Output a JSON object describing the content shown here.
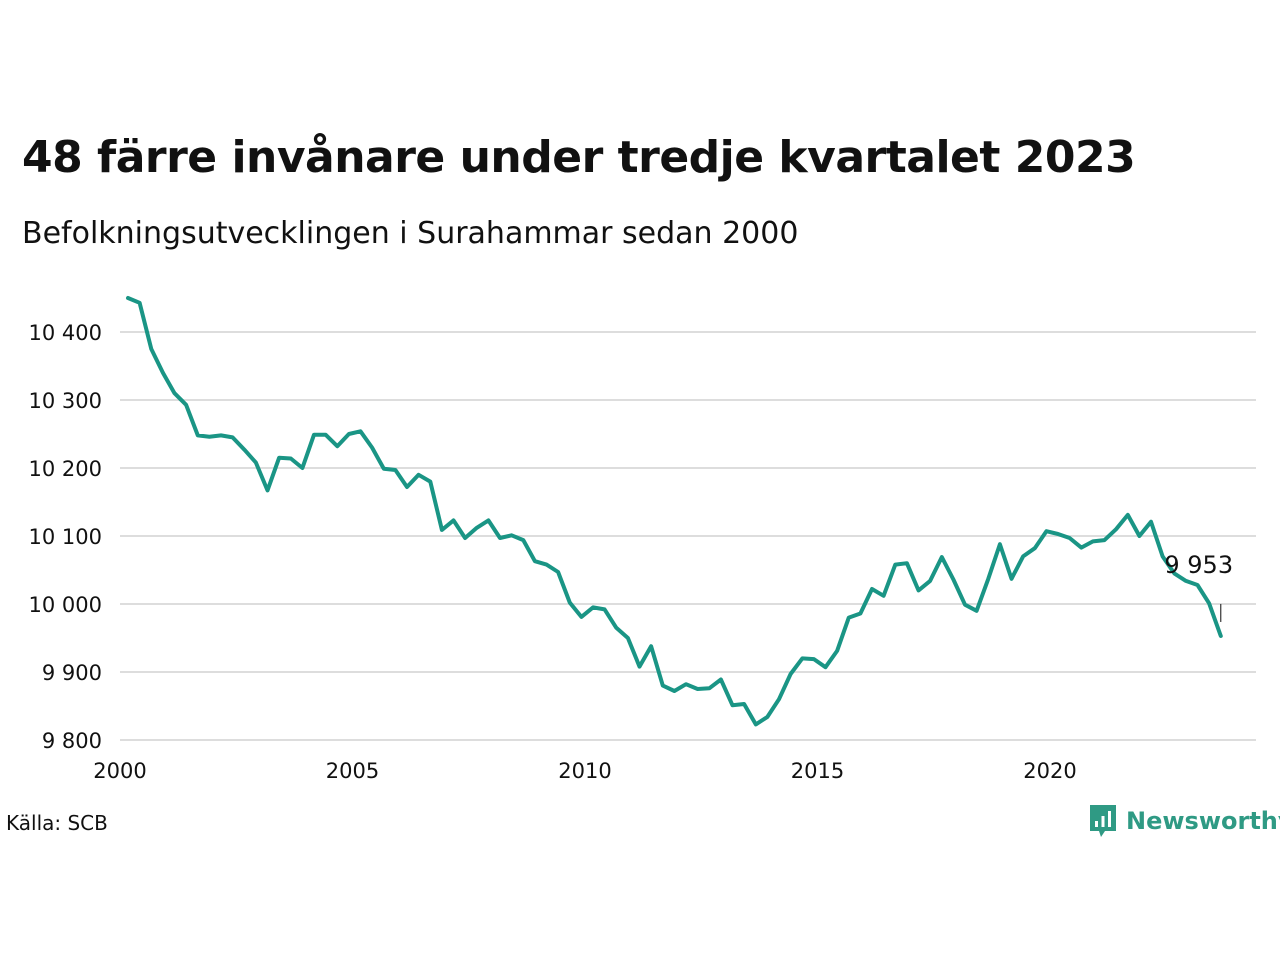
{
  "title": "48 färre invånare under tredje kvartalet 2023",
  "subtitle": "Befolkningsutvecklingen i Surahammar sedan 2000",
  "source": "Källa: SCB",
  "brand": {
    "name": "Newsworthy",
    "icon": "newsworthy-logo-icon",
    "color": "#2f9a84"
  },
  "colors": {
    "line": "#1a9585",
    "grid": "#dddddd",
    "text": "#111111"
  },
  "chart_data": {
    "type": "line",
    "title": "48 färre invånare under tredje kvartalet 2023",
    "subtitle": "Befolkningsutvecklingen i Surahammar sedan 2000",
    "xlabel": "",
    "ylabel": "",
    "xlim": [
      2000,
      2024.5
    ],
    "ylim": [
      9800,
      10470
    ],
    "x_ticks": [
      2000,
      2005,
      2010,
      2015,
      2020
    ],
    "x_tick_labels": [
      "2000",
      "2005",
      "2010",
      "2015",
      "2020"
    ],
    "y_ticks": [
      9800,
      9900,
      10000,
      10100,
      10200,
      10300,
      10400
    ],
    "y_tick_labels": [
      "9 800",
      "9 900",
      "10 000",
      "10 100",
      "10 200",
      "10 300",
      "10 400"
    ],
    "grid": true,
    "legend": "none",
    "annotation": {
      "label": "9 953",
      "x": 2023.5,
      "y": 9953
    },
    "series": [
      {
        "x": [
          2000.0,
          2000.25,
          2000.5,
          2000.75,
          2001.0,
          2001.25,
          2001.5,
          2001.75,
          2002.0,
          2002.25,
          2002.5,
          2002.75,
          2003.0,
          2003.25,
          2003.5,
          2003.75,
          2004.0,
          2004.25,
          2004.5,
          2004.75,
          2005.0,
          2005.25,
          2005.5,
          2005.75,
          2006.0,
          2006.25,
          2006.5,
          2006.75,
          2007.0,
          2007.25,
          2007.5,
          2007.75,
          2008.0,
          2008.25,
          2008.5,
          2008.75,
          2009.0,
          2009.25,
          2009.5,
          2009.75,
          2010.0,
          2010.25,
          2010.5,
          2010.75,
          2011.0,
          2011.25,
          2011.5,
          2011.75,
          2012.0,
          2012.25,
          2012.5,
          2012.75,
          2013.0,
          2013.25,
          2013.5,
          2013.75,
          2014.0,
          2014.25,
          2014.5,
          2014.75,
          2015.0,
          2015.25,
          2015.5,
          2015.75,
          2016.0,
          2016.25,
          2016.5,
          2016.75,
          2017.0,
          2017.25,
          2017.5,
          2017.75,
          2018.0,
          2018.25,
          2018.5,
          2018.75,
          2019.0,
          2019.25,
          2019.5,
          2019.75,
          2020.0,
          2020.25,
          2020.5,
          2020.75,
          2021.0,
          2021.25,
          2021.5,
          2021.75,
          2022.0,
          2022.25,
          2022.5,
          2022.75,
          2023.0,
          2023.25,
          2023.5
        ],
        "values": [
          10450,
          10443,
          10375,
          10340,
          10310,
          10293,
          10248,
          10246,
          10248,
          10245,
          10227,
          10208,
          10167,
          10215,
          10214,
          10200,
          10249,
          10249,
          10232,
          10250,
          10254,
          10230,
          10199,
          10197,
          10172,
          10190,
          10180,
          10109,
          10123,
          10097,
          10112,
          10123,
          10097,
          10101,
          10094,
          10063,
          10058,
          10047,
          10002,
          9981,
          9995,
          9992,
          9965,
          9950,
          9908,
          9938,
          9880,
          9872,
          9882,
          9875,
          9876,
          9889,
          9851,
          9853,
          9823,
          9834,
          9860,
          9897,
          9920,
          9919,
          9907,
          9931,
          9980,
          9986,
          10022,
          10012,
          10058,
          10060,
          10020,
          10034,
          10069,
          10036,
          9999,
          9990,
          10037,
          10088,
          10037,
          10070,
          10082,
          10107,
          10103,
          10097,
          10083,
          10092,
          10094,
          10110,
          10131,
          10100,
          10121,
          10070,
          10045,
          10034,
          10028,
          10001,
          9953
        ]
      }
    ]
  }
}
